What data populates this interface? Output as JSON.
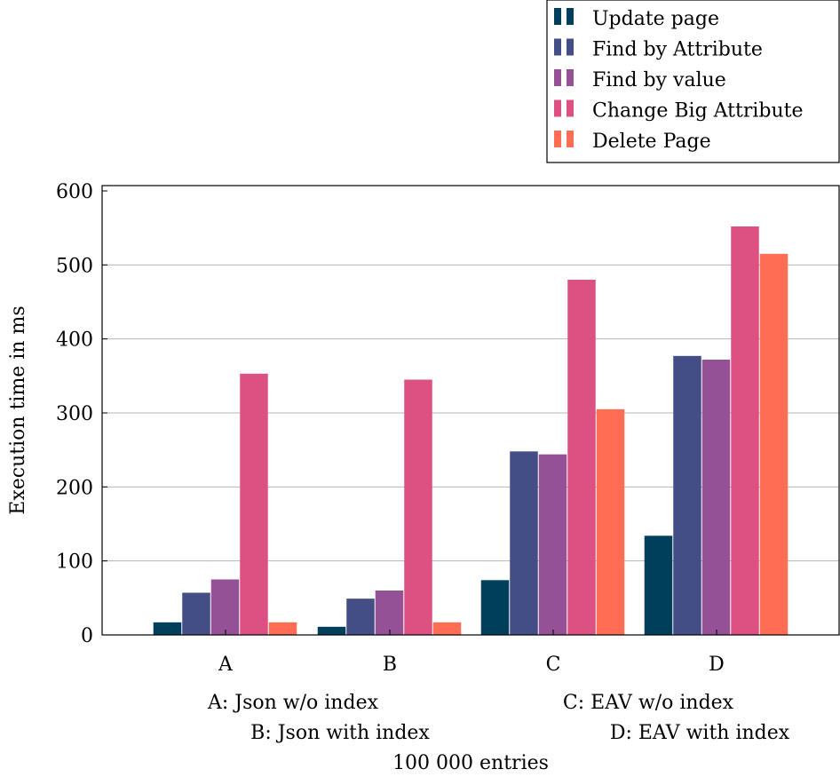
{
  "chart_data": {
    "type": "bar",
    "title": "",
    "xlabel": "100 000 entries",
    "ylabel": "Execution time in ms",
    "categories": [
      "A",
      "B",
      "C",
      "D"
    ],
    "ylim": [
      0,
      600
    ],
    "yticks": [
      0,
      100,
      200,
      300,
      400,
      500,
      600
    ],
    "grid": true,
    "legend_position": "top-right",
    "series": [
      {
        "name": "Update page",
        "color": "#003f5c",
        "values": [
          17,
          11,
          74,
          134
        ]
      },
      {
        "name": "Find by Attribute",
        "color": "#444e86",
        "values": [
          57,
          49,
          248,
          377
        ]
      },
      {
        "name": "Find by value",
        "color": "#955196",
        "values": [
          75,
          60,
          244,
          372
        ]
      },
      {
        "name": "Change Big Attribute",
        "color": "#dd5182",
        "values": [
          353,
          345,
          480,
          552
        ]
      },
      {
        "name": "Delete Page",
        "color": "#ff6e54",
        "values": [
          17,
          17,
          305,
          515
        ]
      }
    ],
    "category_notes": [
      "A: Json w/o index",
      "B: Json with index",
      "C: EAV w/o index",
      "D: EAV with index"
    ]
  }
}
